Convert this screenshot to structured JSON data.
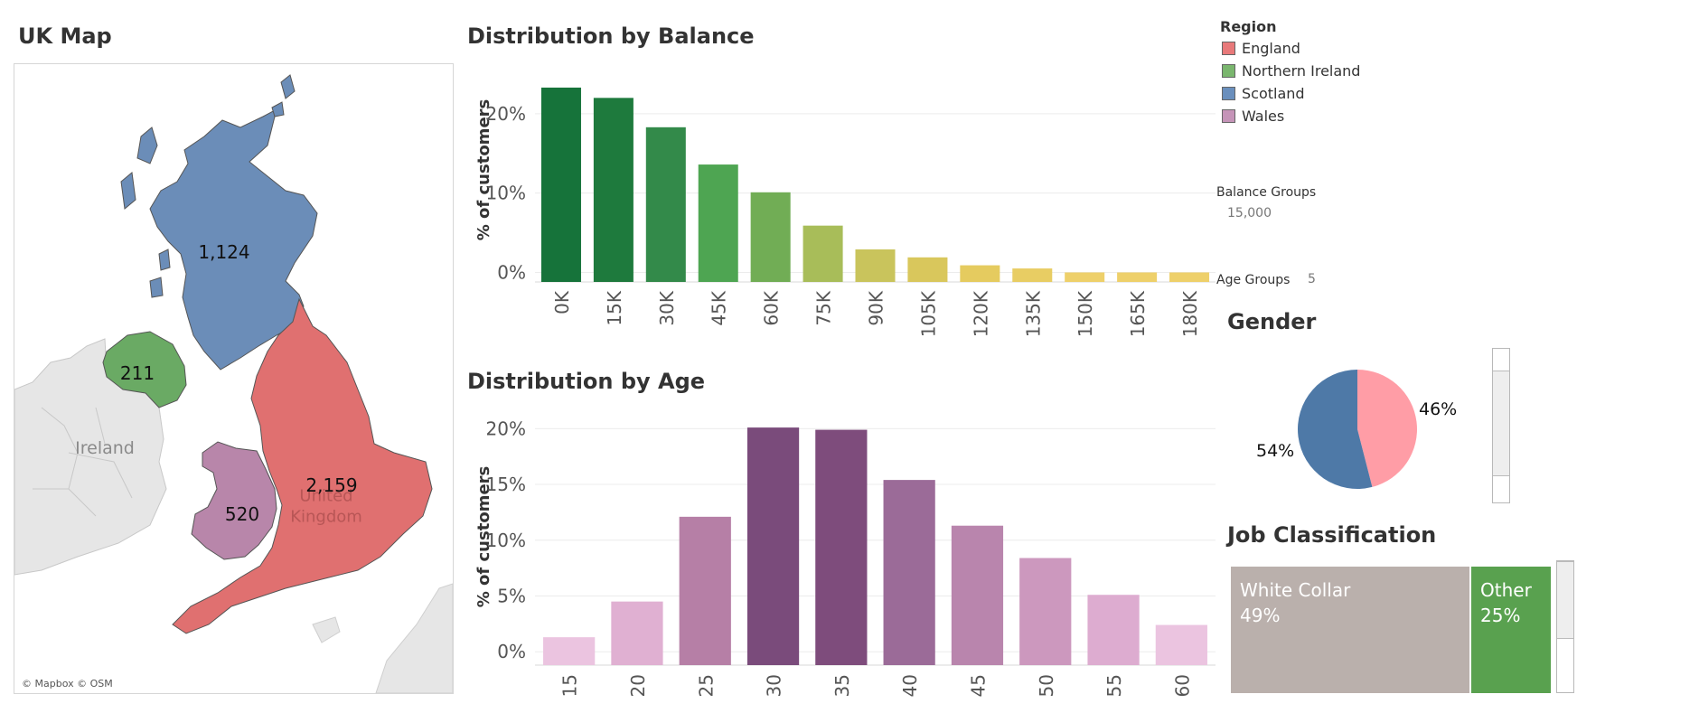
{
  "map": {
    "title": "UK Map",
    "regions": [
      {
        "name": "Scotland",
        "value": "1,124",
        "color": "#6b8db8"
      },
      {
        "name": "Northern Ireland",
        "value": "211",
        "color": "#6aaa64"
      },
      {
        "name": "England",
        "value": "2,159",
        "color": "#e07070"
      },
      {
        "name": "Wales",
        "value": "520",
        "color": "#b886aa"
      }
    ],
    "place_labels": {
      "ireland": "Ireland",
      "uk": "United Kingdom"
    },
    "attribution": "© Mapbox © OSM"
  },
  "legend": {
    "title": "Region",
    "items": [
      {
        "label": "England",
        "color": "#e8797a"
      },
      {
        "label": "Northern Ireland",
        "color": "#7ab66e"
      },
      {
        "label": "Scotland",
        "color": "#6a8fbd"
      },
      {
        "label": "Wales",
        "color": "#c594b8"
      }
    ]
  },
  "params": {
    "balance_groups_label": "Balance Groups",
    "balance_groups_value": "15,000",
    "age_groups_label": "Age Groups",
    "age_groups_value": "5"
  },
  "chart_data": [
    {
      "type": "bar",
      "title": "Distribution by Balance",
      "xlabel": "",
      "ylabel": "% of customers",
      "categories": [
        "0K",
        "15K",
        "30K",
        "45K",
        "60K",
        "75K",
        "90K",
        "105K",
        "120K",
        "135K",
        "150K",
        "165K",
        "180K"
      ],
      "values": [
        23.3,
        22.0,
        18.3,
        13.6,
        10.1,
        5.9,
        2.9,
        1.9,
        0.9,
        0.5,
        0.0,
        0.0,
        0.0
      ],
      "colors": [
        "#16733a",
        "#1e7a3d",
        "#338a4a",
        "#4ea552",
        "#71ad55",
        "#a8bd59",
        "#c9c45c",
        "#d9c75c",
        "#e5cb5f",
        "#e8cd63",
        "#eed06a",
        "#eed06a",
        "#eed06a"
      ],
      "yticks": [
        "0%",
        "10%",
        "20%"
      ],
      "ylim": [
        -1.2,
        25
      ],
      "grid": true
    },
    {
      "type": "bar",
      "title": "Distribution by Age",
      "xlabel": "",
      "ylabel": "% of customers",
      "categories": [
        "15",
        "20",
        "25",
        "30",
        "35",
        "40",
        "45",
        "50",
        "55",
        "60"
      ],
      "values": [
        1.3,
        4.5,
        12.1,
        20.1,
        19.9,
        15.4,
        11.3,
        8.4,
        5.1,
        2.4
      ],
      "colors": [
        "#ebc4e0",
        "#e0b0d2",
        "#b67fa6",
        "#7a4b7b",
        "#7e4c7c",
        "#9b6b98",
        "#b985ad",
        "#cc98be",
        "#ddacd0",
        "#ebc4e0"
      ],
      "yticks": [
        "0%",
        "5%",
        "10%",
        "15%",
        "20%"
      ],
      "ylim": [
        -1.2,
        21
      ],
      "grid": true
    },
    {
      "type": "pie",
      "title": "Gender",
      "slices": [
        {
          "label": "46%",
          "value": 46,
          "color": "#ff9da6"
        },
        {
          "label": "54%",
          "value": 54,
          "color": "#4e79a7"
        }
      ]
    },
    {
      "type": "treemap",
      "title": "Job Classification",
      "tiles": [
        {
          "name": "White Collar",
          "value": "49%",
          "color": "#bab0ac"
        },
        {
          "name": "Other",
          "value": "25%",
          "color": "#59a14f"
        }
      ]
    }
  ]
}
